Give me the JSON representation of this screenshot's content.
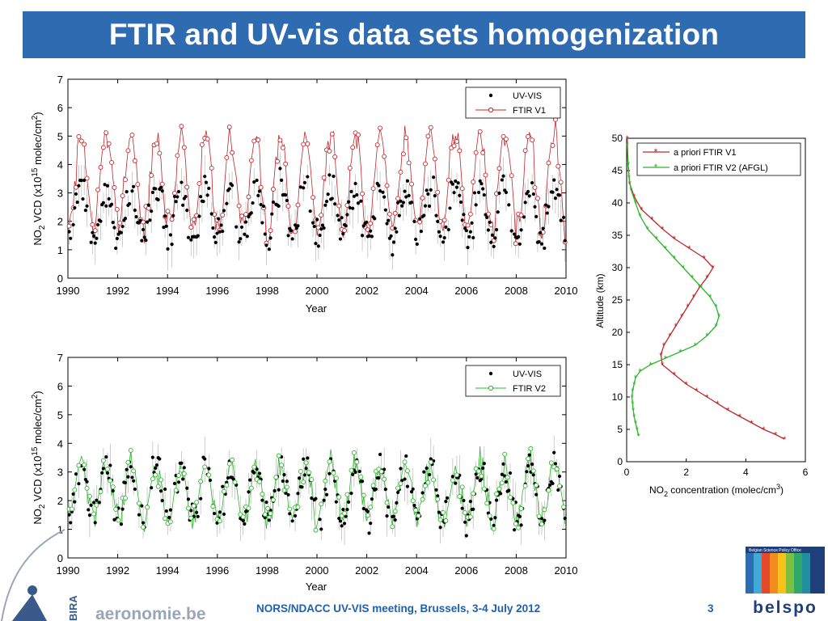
{
  "slide": {
    "title": "FTIR and UV-vis data sets homogenization",
    "footer": "NORS/NDACC UV-VIS meeting, Brussels, 3-4 July 2012",
    "page_number": "3",
    "left_logo_text": "aeronomie.be",
    "left_logo_sub": "BIRA",
    "right_logo_text": "belspo",
    "right_logo_sub": "Belgian Science Policy Office"
  },
  "colors": {
    "title_bar": "#2e6bb0",
    "uvvis": "#000000",
    "ftir_v1": "#c0262c",
    "ftir_v2": "#2db52d",
    "footer": "#1f5fae",
    "belspo_text": "#1f3f7a"
  },
  "chart_data": [
    {
      "type": "scatter",
      "panel": "top",
      "xlabel": "Year",
      "ylabel": "NO2 VCD (x10^15 molec/cm^2)",
      "ylabel_parts": {
        "p1": "NO",
        "p1sub": "2",
        "p2": " VCD (x10",
        "p2sup": "15",
        "p3": " molec/cm",
        "p3sup": "2",
        "p4": ")"
      },
      "xlim": [
        1990,
        2010
      ],
      "ylim": [
        0,
        7
      ],
      "xticks": [
        "1990",
        "1992",
        "1994",
        "1996",
        "1998",
        "2000",
        "2002",
        "2004",
        "2006",
        "2008",
        "2010"
      ],
      "yticks": [
        "0",
        "1",
        "2",
        "3",
        "4",
        "5",
        "6",
        "7"
      ],
      "legend": [
        "UV-VIS",
        "FTIR V1"
      ],
      "legend_position": "top-right",
      "series": [
        {
          "name": "UV-VIS",
          "marker": "filled-dot",
          "color": "#000000",
          "seasonal_model": {
            "mean": 2.3,
            "amplitude": 0.9,
            "peak_month": "July"
          }
        },
        {
          "name": "FTIR V1",
          "marker": "open-circle-line",
          "color": "#c0262c",
          "seasonal_model": {
            "mean": 3.4,
            "amplitude": 1.7,
            "peak_month": "July"
          }
        }
      ]
    },
    {
      "type": "scatter",
      "panel": "bottom",
      "xlabel": "Year",
      "ylabel": "NO2 VCD (x10^15 molec/cm^2)",
      "ylabel_parts": {
        "p1": "NO",
        "p1sub": "2",
        "p2": " VCD (x10",
        "p2sup": "15",
        "p3": " molec/cm",
        "p3sup": "2",
        "p4": ")"
      },
      "xlim": [
        1990,
        2010
      ],
      "ylim": [
        0,
        7
      ],
      "xticks": [
        "1990",
        "1992",
        "1994",
        "1996",
        "1998",
        "2000",
        "2002",
        "2004",
        "2006",
        "2008",
        "2010"
      ],
      "yticks": [
        "0",
        "1",
        "2",
        "3",
        "4",
        "5",
        "6",
        "7"
      ],
      "legend": [
        "UV-VIS",
        "FTIR V2"
      ],
      "legend_position": "top-right",
      "series": [
        {
          "name": "UV-VIS",
          "marker": "filled-dot",
          "color": "#000000",
          "seasonal_model": {
            "mean": 2.3,
            "amplitude": 0.9,
            "peak_month": "July"
          }
        },
        {
          "name": "FTIR V2",
          "marker": "open-circle-line",
          "color": "#2db52d",
          "seasonal_model": {
            "mean": 2.3,
            "amplitude": 0.9,
            "peak_month": "July"
          }
        }
      ]
    },
    {
      "type": "line",
      "panel": "profile",
      "xlabel": "NO2 concentration (molec/cm3)",
      "xlabel_parts": {
        "p1": "NO",
        "p1sub": "2",
        "p2": " concentration (molec/cm",
        "p2sup": "3",
        "p3": ")"
      },
      "ylabel": "Altitude (km)",
      "xlim": [
        0,
        6
      ],
      "ylim": [
        0,
        50
      ],
      "xticks": [
        "0",
        "2",
        "4",
        "6"
      ],
      "yticks": [
        "0",
        "5",
        "10",
        "15",
        "20",
        "25",
        "30",
        "35",
        "40",
        "45",
        "50"
      ],
      "legend": [
        "a priori FTIR V1",
        "a priori FTIR V2 (AFGL)"
      ],
      "legend_position": "top-right",
      "series": [
        {
          "name": "a priori FTIR V1",
          "color": "#c0262c",
          "marker": "star",
          "x": [
            5.3,
            5.0,
            4.6,
            4.2,
            3.8,
            3.4,
            3.05,
            2.7,
            2.35,
            2.0,
            1.6,
            1.2,
            1.15,
            1.25,
            1.45,
            1.65,
            1.85,
            2.05,
            2.25,
            2.45,
            2.7,
            2.9,
            2.6,
            2.1,
            1.6,
            1.2,
            0.85,
            0.5,
            0.25,
            0.1,
            0.05,
            0.02
          ],
          "y": [
            3.5,
            4.2,
            5.0,
            6.0,
            7.0,
            8.0,
            9.0,
            10.0,
            11.0,
            12.0,
            13.5,
            15.0,
            16.5,
            18.0,
            19.5,
            21.0,
            22.5,
            24.0,
            25.5,
            27.0,
            28.5,
            30.0,
            31.5,
            33.0,
            34.5,
            36.0,
            37.5,
            39.0,
            41.0,
            43.0,
            46.0,
            50.0
          ]
        },
        {
          "name": "a priori FTIR V2 (AFGL)",
          "color": "#2db52d",
          "marker": "star",
          "x": [
            0.4,
            0.35,
            0.3,
            0.25,
            0.22,
            0.2,
            0.18,
            0.2,
            0.25,
            0.3,
            0.45,
            0.8,
            1.3,
            1.8,
            2.3,
            2.7,
            3.0,
            3.1,
            3.0,
            2.8,
            2.5,
            2.2,
            1.9,
            1.6,
            1.3,
            1.0,
            0.7,
            0.45,
            0.3,
            0.15,
            0.08,
            0.04,
            0.02
          ],
          "y": [
            4,
            5,
            6,
            7,
            8,
            9,
            10,
            11,
            12,
            13,
            14,
            15,
            16,
            17,
            18,
            19.5,
            21,
            22.5,
            24,
            25.5,
            27,
            28.5,
            30,
            31.5,
            33,
            34.5,
            36,
            38,
            40,
            42,
            44,
            46,
            49
          ]
        }
      ]
    }
  ]
}
